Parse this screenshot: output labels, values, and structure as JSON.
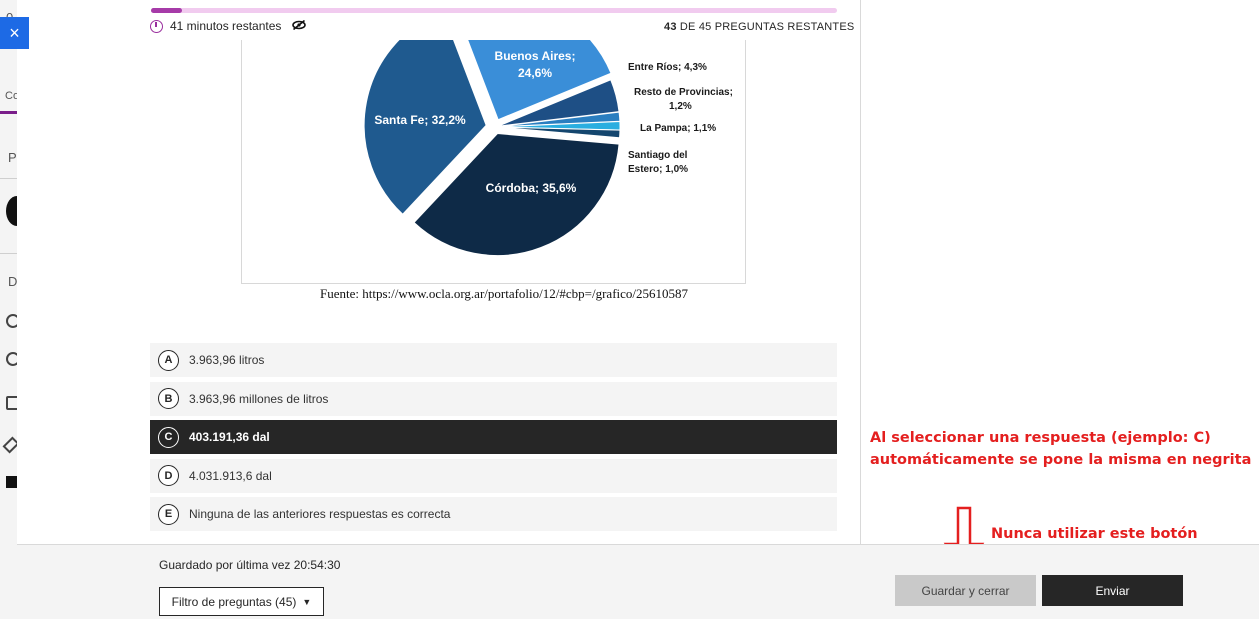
{
  "header": {
    "time_remaining": "41 minutos restantes",
    "questions_count": "43",
    "questions_suffix": "DE 45 PREGUNTAS RESTANTES",
    "progress_fraction": 0.045
  },
  "chart_data": {
    "type": "pie",
    "slices": [
      {
        "label": "Córdoba; 35,6%",
        "value": 35.6,
        "color": "#0e2a47"
      },
      {
        "label": "Santa Fe; 32,2%",
        "value": 32.2,
        "color": "#1f5a8f"
      },
      {
        "label": "Buenos Aires; 24,6%",
        "value": 24.6,
        "color": "#3a8ed8"
      },
      {
        "label": "Entre Ríos; 4,3%",
        "value": 4.3,
        "color": "#1e4f85"
      },
      {
        "label": "Resto de Provincias; 1,2%",
        "value": 1.2,
        "color": "#2a7ec0"
      },
      {
        "label": "La Pampa; 1,1%",
        "value": 1.1,
        "color": "#2aaee0"
      },
      {
        "label": "Santiago del Estero; 1,0%",
        "value": 1.0,
        "color": "#14466e"
      }
    ],
    "outside_labels": {
      "entre_rios": "Entre Ríos; 4,3%",
      "resto_1": "Resto de Provincias;",
      "resto_2": "1,2%",
      "la_pampa": "La Pampa; 1,1%",
      "santiago_1": "Santiago del",
      "santiago_2": "Estero; 1,0%"
    },
    "inside_labels": {
      "buenos_aires_1": "Buenos Aires;",
      "buenos_aires_2": "24,6%",
      "santa_fe": "Santa Fe; 32,2%",
      "cordoba": "Córdoba; 35,6%"
    }
  },
  "caption": "Fuente: https://www.ocla.org.ar/portafolio/12/#cbp=/grafico/25610587",
  "answers": [
    {
      "letter": "A",
      "text": "3.963,96 litros",
      "selected": false
    },
    {
      "letter": "B",
      "text": "3.963,96 millones de litros",
      "selected": false
    },
    {
      "letter": "C",
      "text": "403.191,36 dal",
      "selected": true
    },
    {
      "letter": "D",
      "text": "4.031.913,6 dal",
      "selected": false
    },
    {
      "letter": "E",
      "text": "Ninguna de las anteriores respuestas es correcta",
      "selected": false
    }
  ],
  "annotations": {
    "line1": "Al seleccionar una respuesta (ejemplo: C)",
    "line2": "automáticamente se pone la misma en negrita",
    "warning": "Nunca utilizar este botón",
    "color": "#e41f1f"
  },
  "footer": {
    "saved": "Guardado por última vez 20:54:30",
    "filter": "Filtro de preguntas (45)",
    "save_close": "Guardar y cerrar",
    "send": "Enviar"
  },
  "close_icon": "×",
  "background_fragments": [
    "0",
    "Co",
    "P",
    "D"
  ]
}
